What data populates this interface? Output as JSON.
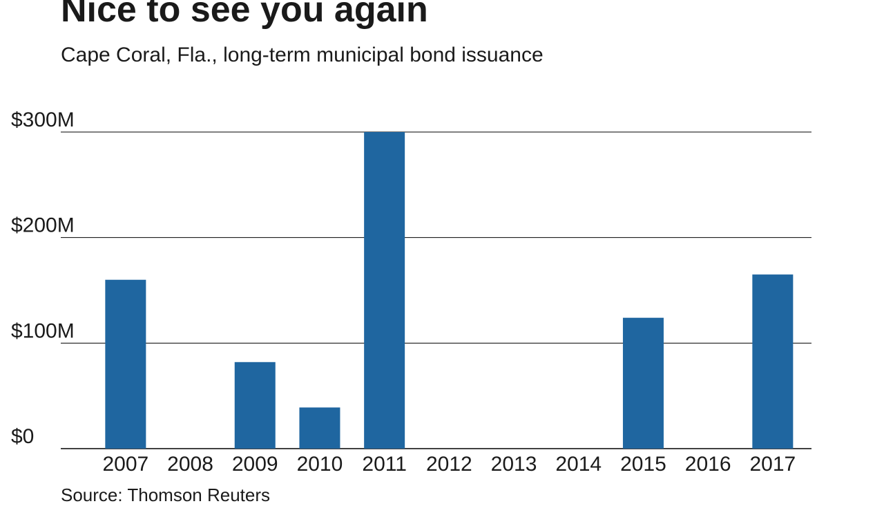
{
  "title": "Nice to see you again",
  "subtitle": "Cape Coral, Fla., long-term municipal bond issuance",
  "source": "Source: Thomson Reuters",
  "colors": {
    "bar": "#1f66a0",
    "grid": "#000000"
  },
  "chart_data": {
    "type": "bar",
    "categories": [
      "2007",
      "2008",
      "2009",
      "2010",
      "2011",
      "2012",
      "2013",
      "2014",
      "2015",
      "2016",
      "2017"
    ],
    "values": [
      160,
      0,
      82,
      39,
      300,
      0,
      0,
      0,
      124,
      0,
      165
    ],
    "title": "Nice to see you again",
    "subtitle": "Cape Coral, Fla., long-term municipal bond issuance",
    "xlabel": "",
    "ylabel": "",
    "ylim": [
      0,
      300
    ],
    "yticks": [
      0,
      100,
      200,
      300
    ],
    "ytick_labels": [
      "$0",
      "$100M",
      "$200M",
      "$300M"
    ],
    "grid": true,
    "legend": "none"
  }
}
